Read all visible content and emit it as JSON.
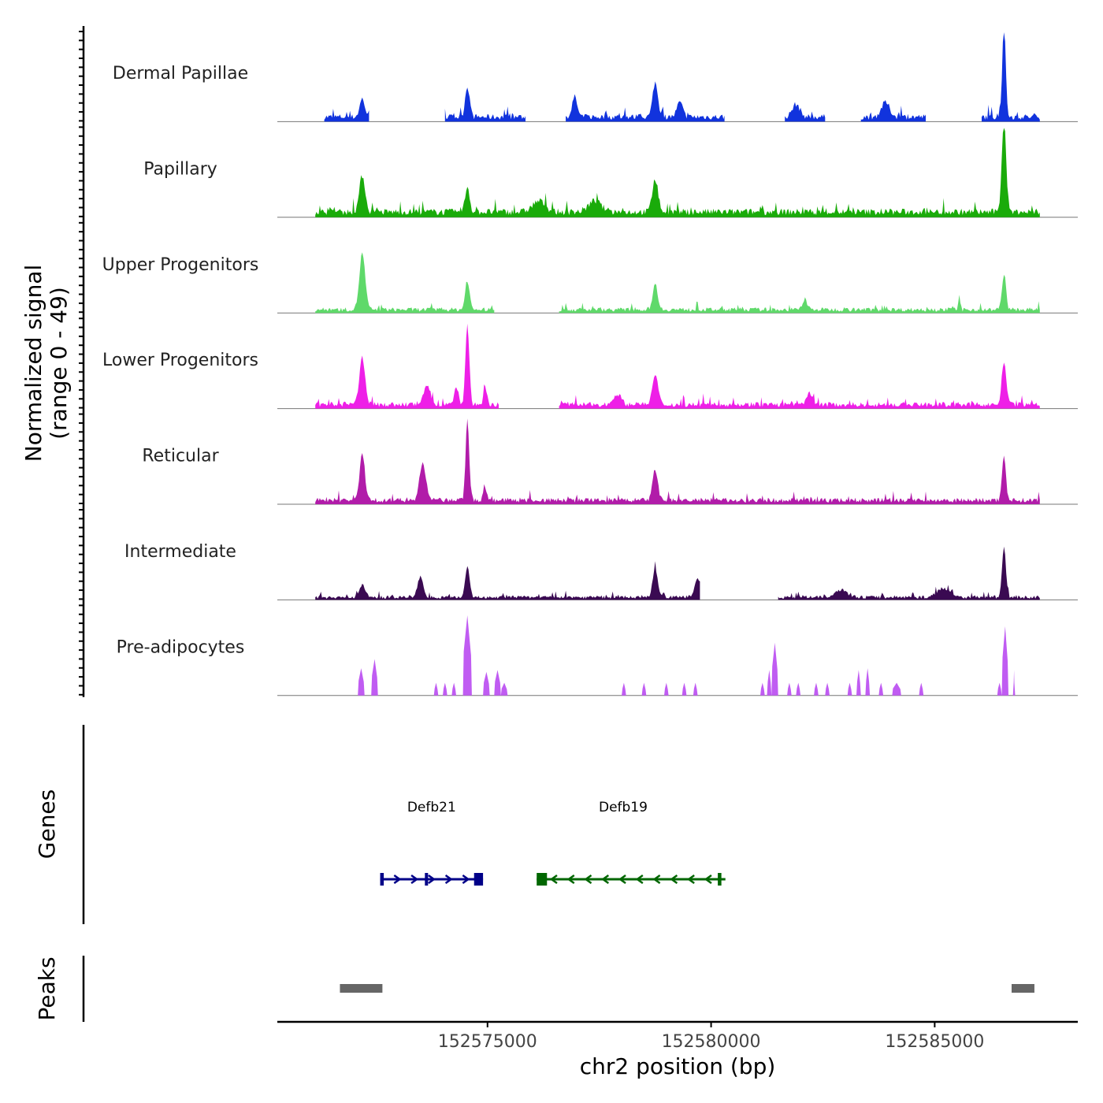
{
  "chart_data": {
    "type": "area",
    "title": "",
    "chromosome": "chr2",
    "xlabel": "chr2 position (bp)",
    "ylabel_line1": "Normalized signal",
    "ylabel_line2": "(range 0 - 49)",
    "xlim": [
      152570300,
      152588200
    ],
    "ylim": [
      0,
      49
    ],
    "x_ticks": [
      152575000,
      152580000,
      152585000
    ],
    "x_tick_labels": [
      "152575000",
      "152580000",
      "152585000"
    ],
    "series": [
      {
        "name": "Dermal Papillae",
        "color": "#1133dd",
        "segments": [
          [
            152571350,
            152572350
          ],
          [
            152574050,
            152575850
          ],
          [
            152576750,
            152580300
          ],
          [
            152581650,
            152582550
          ],
          [
            152583350,
            152584800
          ],
          [
            152586050,
            152587350
          ]
        ],
        "base": 3.5,
        "peaks": [
          [
            152572200,
            10,
            80
          ],
          [
            152574550,
            17,
            70
          ],
          [
            152576950,
            11,
            80
          ],
          [
            152578750,
            19,
            80
          ],
          [
            152579300,
            8,
            90
          ],
          [
            152581900,
            7,
            120
          ],
          [
            152583900,
            8,
            130
          ],
          [
            152586550,
            49,
            55
          ]
        ]
      },
      {
        "name": "Papillary",
        "color": "#1aab0a",
        "segments": [
          [
            152571150,
            152587350
          ]
        ],
        "base": 4,
        "peaks": [
          [
            152572200,
            20,
            90
          ],
          [
            152574550,
            14,
            70
          ],
          [
            152576150,
            6,
            200
          ],
          [
            152577400,
            6,
            200
          ],
          [
            152578750,
            18,
            90
          ],
          [
            152586550,
            49,
            70
          ]
        ]
      },
      {
        "name": "Upper Progenitors",
        "color": "#5fd96a",
        "segments": [
          [
            152571150,
            152575150
          ],
          [
            152576600,
            152587350
          ]
        ],
        "base": 2.5,
        "peaks": [
          [
            152572200,
            31,
            90
          ],
          [
            152574550,
            15,
            70
          ],
          [
            152578750,
            14,
            80
          ],
          [
            152582100,
            5,
            80
          ],
          [
            152585550,
            7,
            30
          ],
          [
            152586550,
            20,
            60
          ]
        ]
      },
      {
        "name": "Lower Progenitors",
        "color": "#ee1fe7",
        "segments": [
          [
            152571150,
            152575250
          ],
          [
            152576600,
            152587350
          ]
        ],
        "base": 3,
        "peaks": [
          [
            152572200,
            26,
            90
          ],
          [
            152573650,
            10,
            110
          ],
          [
            152574300,
            9,
            70
          ],
          [
            152574550,
            44,
            60
          ],
          [
            152574950,
            9,
            55
          ],
          [
            152577900,
            6,
            120
          ],
          [
            152578750,
            16,
            90
          ],
          [
            152582200,
            6,
            80
          ],
          [
            152586550,
            24,
            70
          ]
        ]
      },
      {
        "name": "Reticular",
        "color": "#b11ca9",
        "segments": [
          [
            152571150,
            152587350
          ]
        ],
        "base": 3,
        "peaks": [
          [
            152572200,
            26,
            80
          ],
          [
            152573550,
            20,
            100
          ],
          [
            152574550,
            45,
            55
          ],
          [
            152574950,
            6,
            60
          ],
          [
            152578750,
            17,
            80
          ],
          [
            152586550,
            25,
            60
          ]
        ]
      },
      {
        "name": "Intermediate",
        "color": "#3a0a52",
        "segments": [
          [
            152571150,
            152579750
          ],
          [
            152581500,
            152587350
          ]
        ],
        "base": 2,
        "peaks": [
          [
            152572200,
            7,
            90
          ],
          [
            152573500,
            11,
            90
          ],
          [
            152574550,
            17,
            70
          ],
          [
            152578750,
            16,
            80
          ],
          [
            152579700,
            10,
            100
          ],
          [
            152582900,
            4,
            200
          ],
          [
            152585200,
            5,
            200
          ],
          [
            152586550,
            27,
            60
          ]
        ]
      },
      {
        "name": "Pre-adipocytes",
        "color": "#c05cf2",
        "segments": [],
        "base": 0,
        "peaks": [
          [
            152572150,
            15,
            30
          ],
          [
            152572450,
            20,
            40
          ],
          [
            152574550,
            44,
            40
          ],
          [
            152574700,
            12,
            40
          ],
          [
            152574950,
            13,
            40
          ],
          [
            152575300,
            7,
            60
          ],
          [
            152581400,
            29,
            40
          ],
          [
            152581700,
            14,
            30
          ],
          [
            152583650,
            15,
            30
          ],
          [
            152586550,
            38,
            30
          ],
          [
            152586450,
            8,
            40
          ],
          [
            152586750,
            14,
            20
          ]
        ],
        "blocks": [
          [
            152572100,
            152572250,
            15
          ],
          [
            152572400,
            152572550,
            20
          ],
          [
            152573800,
            152573900,
            7
          ],
          [
            152574000,
            152574100,
            7
          ],
          [
            152574200,
            152574300,
            7
          ],
          [
            152574450,
            152574650,
            44
          ],
          [
            152574900,
            152575050,
            13
          ],
          [
            152575150,
            152575300,
            14
          ],
          [
            152575300,
            152575450,
            7
          ],
          [
            152578000,
            152578100,
            7
          ],
          [
            152578450,
            152578550,
            7
          ],
          [
            152578950,
            152579050,
            7
          ],
          [
            152579350,
            152579450,
            7
          ],
          [
            152579600,
            152579700,
            7
          ],
          [
            152581100,
            152581200,
            7
          ],
          [
            152581250,
            152581350,
            14
          ],
          [
            152581350,
            152581500,
            29
          ],
          [
            152581700,
            152581800,
            7
          ],
          [
            152581900,
            152582000,
            7
          ],
          [
            152582300,
            152582400,
            7
          ],
          [
            152582550,
            152582650,
            7
          ],
          [
            152583050,
            152583150,
            7
          ],
          [
            152583250,
            152583350,
            14
          ],
          [
            152583450,
            152583550,
            15
          ],
          [
            152583750,
            152583850,
            7
          ],
          [
            152584050,
            152584250,
            7
          ],
          [
            152584650,
            152584750,
            7
          ],
          [
            152586400,
            152586500,
            7
          ],
          [
            152586500,
            152586650,
            38
          ],
          [
            152586750,
            152586800,
            14
          ]
        ]
      }
    ],
    "genes": [
      {
        "name": "Defb21",
        "start": 152572600,
        "end": 152574900,
        "strand": "+",
        "color": "#000088",
        "exons": [
          [
            152572600,
            152572680
          ],
          [
            152573600,
            152573660
          ],
          [
            152574700,
            152574900
          ]
        ]
      },
      {
        "name": "Defb19",
        "start": 152576100,
        "end": 152580320,
        "strand": "-",
        "color": "#006600",
        "exons": [
          [
            152576100,
            152576330
          ],
          [
            152580150,
            152580230
          ]
        ]
      }
    ],
    "genes_label": "Genes",
    "peaks_label": "Peaks",
    "peak_regions": [
      [
        152571700,
        152572650
      ],
      [
        152586720,
        152587230
      ]
    ]
  }
}
